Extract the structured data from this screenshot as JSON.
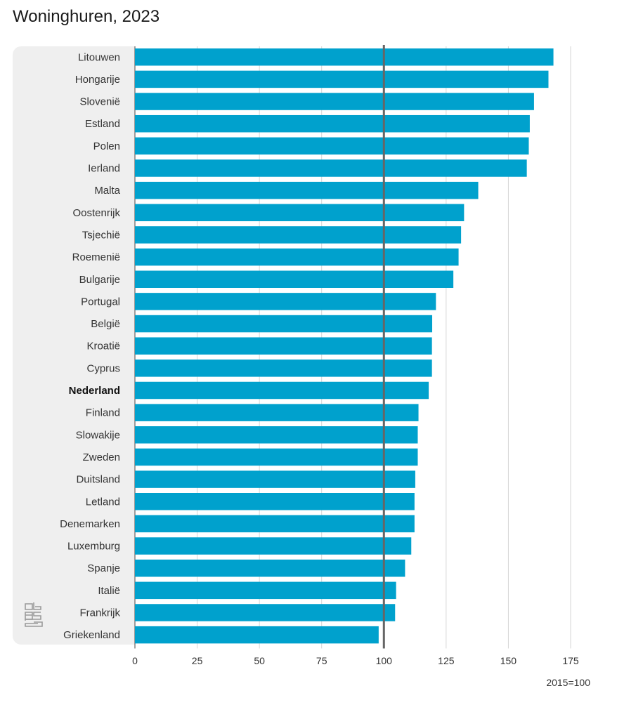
{
  "title": "Woninghuren, 2023",
  "logo_text": "cbs",
  "chart_data": {
    "type": "bar",
    "orientation": "horizontal",
    "title": "Woninghuren, 2023",
    "unit_label": "2015=100",
    "reference_line": 100,
    "xlim": [
      0,
      175
    ],
    "xticks": [
      0,
      25,
      50,
      75,
      100,
      125,
      150,
      175
    ],
    "grid": true,
    "bar_color": "#00a1cd",
    "highlight_category": "Nederland",
    "categories": [
      "Litouwen",
      "Hongarije",
      "Slovenië",
      "Estland",
      "Polen",
      "Ierland",
      "Malta",
      "Oostenrijk",
      "Tsjechië",
      "Roemenië",
      "Bulgarije",
      "Portugal",
      "België",
      "Kroatië",
      "Cyprus",
      "Nederland",
      "Finland",
      "Slowakije",
      "Zweden",
      "Duitsland",
      "Letland",
      "Denemarken",
      "Luxemburg",
      "Spanje",
      "Italië",
      "Frankrijk",
      "Griekenland"
    ],
    "values": [
      168.1,
      166.1,
      160.3,
      158.6,
      158.2,
      157.4,
      137.9,
      132.2,
      131.0,
      130.0,
      127.9,
      120.9,
      119.4,
      119.3,
      119.3,
      118.0,
      113.9,
      113.6,
      113.6,
      112.6,
      112.3,
      112.3,
      111.0,
      108.5,
      104.9,
      104.5,
      97.9
    ]
  }
}
